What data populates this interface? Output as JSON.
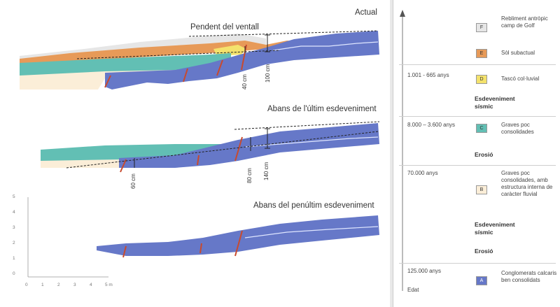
{
  "stages": {
    "actual": "Actual",
    "before_last": "Abans de l'últim esdeveniment",
    "before_penultimate": "Abans del penúltim esdeveniment"
  },
  "annotations": {
    "fan_slope": "Pendent del ventall",
    "m40": "40 cm",
    "m100": "100 cm",
    "m60": "60 cm",
    "m80": "80 cm",
    "m140": "140 cm"
  },
  "scale_bar": {
    "y_ticks": [
      "5",
      "4",
      "3",
      "2",
      "1",
      "0"
    ],
    "x_ticks": [
      "0",
      "1",
      "2",
      "3",
      "4",
      "5 m"
    ]
  },
  "legend": {
    "age_axis_label": "Edat",
    "units": [
      {
        "letter": "F",
        "text": "Rebliment antròpic camp de Golf",
        "color": "#e6e6e6"
      },
      {
        "letter": "E",
        "text": "Sòl subactual",
        "color": "#e79a58"
      },
      {
        "letter": "D",
        "text": "Tascó col·luvial",
        "color": "#f4e26c"
      },
      {
        "letter": "C",
        "text": "Graves poc consolidades",
        "color": "#62bfb4"
      },
      {
        "letter": "B",
        "text": "Graves poc consolidades, amb estructura interna de caràcter fluvial",
        "color": "#fbeed8"
      },
      {
        "letter": "A",
        "text": "Conglomerats calcaris ben consolidats",
        "color": "#6678c8"
      }
    ],
    "ages": {
      "a1": "1.001 - 665 anys",
      "a2": "8.000 – 3.600 anys",
      "a3": "70.000 anys",
      "a4": "125.000 anys"
    },
    "events": {
      "seismic1": "Esdeveniment sísmic",
      "erosion1": "Erosió",
      "seismic2": "Esdeveniment sísmic",
      "erosion2": "Erosió"
    }
  },
  "colors": {
    "conglomerate": "#6678c8",
    "gravel_c": "#62bfb4",
    "gravel_b": "#fbeed8",
    "colluvial": "#f4e26c",
    "soil": "#e79a58",
    "fill": "#e6e6e6",
    "fault": "#c84a2e"
  }
}
